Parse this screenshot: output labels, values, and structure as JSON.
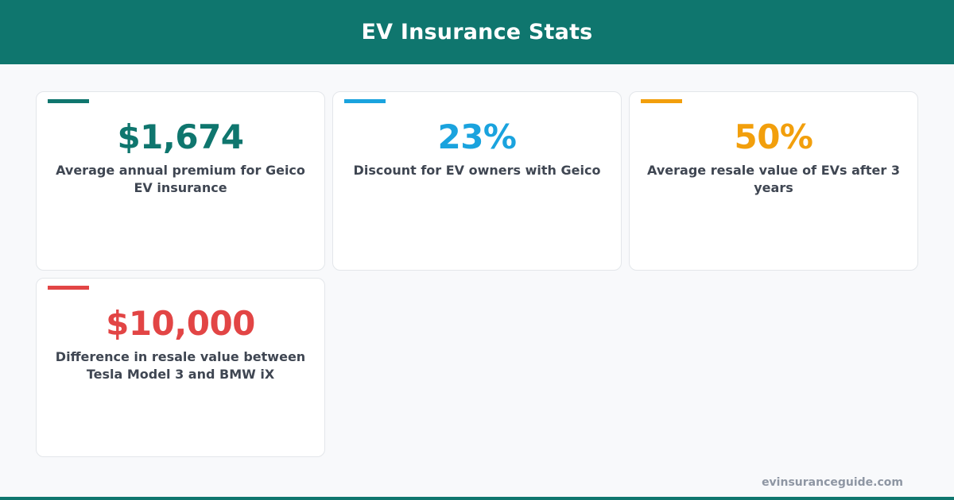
{
  "header": {
    "title": "EV Insurance Stats"
  },
  "stats": [
    {
      "value": "$1,674",
      "description": "Average annual premium for Geico EV insurance",
      "color": "#0f766e"
    },
    {
      "value": "23%",
      "description": "Discount for EV owners with Geico",
      "color": "#1aa3de"
    },
    {
      "value": "50%",
      "description": "Average resale value of EVs after 3 years",
      "color": "#f29f0c"
    },
    {
      "value": "$10,000",
      "description": "Difference in resale value between Tesla Model 3 and BMW iX",
      "color": "#e24545"
    }
  ],
  "footer": {
    "site": "evinsuranceguide.com"
  },
  "theme": {
    "brand": "#0f766e",
    "background": "#f8f9fb"
  }
}
